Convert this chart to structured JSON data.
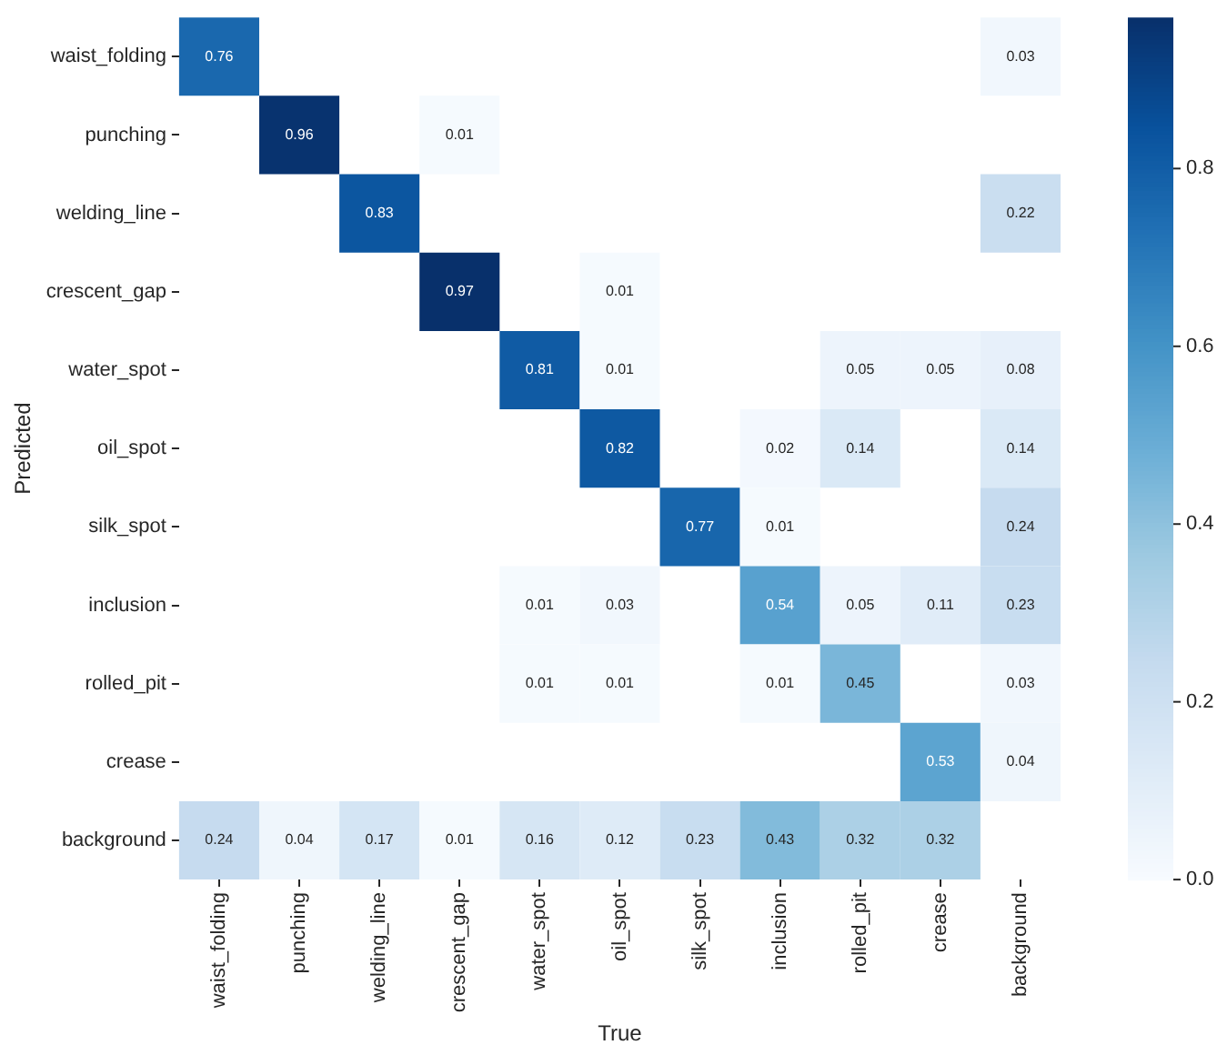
{
  "chart_data": {
    "type": "heatmap",
    "xlabel": "True",
    "ylabel": "Predicted",
    "categories": [
      "waist_folding",
      "punching",
      "welding_line",
      "crescent_gap",
      "water_spot",
      "oil_spot",
      "silk_spot",
      "inclusion",
      "rolled_pit",
      "crease",
      "background"
    ],
    "y_categories": [
      "waist_folding",
      "punching",
      "welding_line",
      "crescent_gap",
      "water_spot",
      "oil_spot",
      "silk_spot",
      "inclusion",
      "rolled_pit",
      "crease",
      "background"
    ],
    "cells": [
      [
        0.76,
        null,
        null,
        null,
        null,
        null,
        null,
        null,
        null,
        null,
        0.03
      ],
      [
        null,
        0.96,
        null,
        0.01,
        null,
        null,
        null,
        null,
        null,
        null,
        null
      ],
      [
        null,
        null,
        0.83,
        null,
        null,
        null,
        null,
        null,
        null,
        null,
        0.22
      ],
      [
        null,
        null,
        null,
        0.97,
        null,
        0.01,
        null,
        null,
        null,
        null,
        null
      ],
      [
        null,
        null,
        null,
        null,
        0.81,
        0.01,
        null,
        null,
        0.05,
        0.05,
        0.08
      ],
      [
        null,
        null,
        null,
        null,
        null,
        0.82,
        null,
        0.02,
        0.14,
        null,
        0.14
      ],
      [
        null,
        null,
        null,
        null,
        null,
        null,
        0.77,
        0.01,
        null,
        null,
        0.24
      ],
      [
        null,
        null,
        null,
        null,
        0.01,
        0.03,
        null,
        0.54,
        0.05,
        0.11,
        0.23
      ],
      [
        null,
        null,
        null,
        null,
        0.01,
        0.01,
        null,
        0.01,
        0.45,
        null,
        0.03
      ],
      [
        null,
        null,
        null,
        null,
        null,
        null,
        null,
        null,
        null,
        0.53,
        0.04
      ],
      [
        0.24,
        0.04,
        0.17,
        0.01,
        0.16,
        0.12,
        0.23,
        0.43,
        0.32,
        0.32,
        null
      ]
    ],
    "clim": [
      0,
      0.97
    ],
    "cticks": [
      {
        "value": 0,
        "label": "0.0"
      },
      {
        "value": 0.2,
        "label": "0.2"
      },
      {
        "value": 0.4,
        "label": "0.4"
      },
      {
        "value": 0.6,
        "label": "0.6"
      },
      {
        "value": 0.8,
        "label": "0.8"
      }
    ],
    "data_labels": true
  }
}
